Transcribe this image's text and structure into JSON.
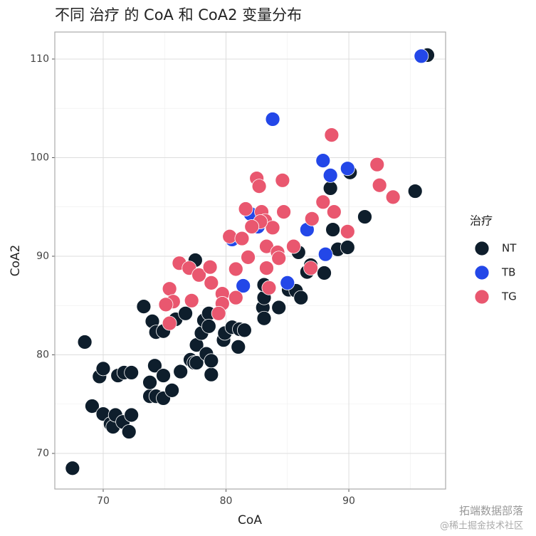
{
  "chart_data": {
    "type": "scatter",
    "title": "不同 治疗 的 CoA 和 CoA2 变量分布",
    "x_label": "CoA",
    "y_label": "CoA2",
    "legend_title": "治疗",
    "legend_position": "right",
    "grid": true,
    "xlim": [
      66.06,
      97.88
    ],
    "ylim": [
      66.39,
      112.74
    ],
    "xticks": [
      70,
      80,
      90
    ],
    "yticks": [
      70,
      80,
      90,
      100,
      110
    ],
    "x_minor_grid": [
      75,
      85,
      95
    ],
    "y_minor_grid": [
      75,
      85,
      95,
      105
    ],
    "series": [
      {
        "name": "NT",
        "color": "#0e1e2c",
        "x": [
          67.5,
          68.5,
          69.1,
          69.7,
          70.0,
          70.0,
          70.6,
          70.8,
          71.0,
          71.2,
          71.6,
          71.7,
          72.1,
          72.3,
          72.3,
          73.3,
          73.8,
          73.8,
          74.0,
          74.2,
          74.3,
          74.3,
          74.9,
          74.9,
          74.9,
          75.6,
          75.9,
          76.3,
          76.7,
          77.1,
          77.4,
          77.5,
          77.6,
          77.6,
          78.0,
          78.2,
          78.4,
          78.6,
          78.6,
          78.8,
          78.8,
          79.8,
          79.9,
          80.5,
          81.0,
          81.1,
          81.5,
          83.0,
          83.1,
          83.1,
          83.1,
          84.3,
          85.1,
          85.7,
          86.1,
          85.9,
          86.6,
          86.9,
          88.0,
          88.5,
          88.7,
          89.1,
          89.9,
          90.1,
          91.3,
          95.4,
          96.4
        ],
        "values": [
          68.5,
          81.3,
          74.8,
          77.8,
          78.6,
          74.0,
          73.0,
          72.7,
          73.9,
          77.9,
          73.2,
          78.2,
          72.2,
          78.2,
          73.9,
          84.9,
          75.8,
          77.2,
          83.4,
          78.9,
          82.3,
          75.8,
          82.4,
          77.9,
          75.6,
          76.4,
          83.6,
          78.3,
          84.2,
          79.5,
          79.2,
          89.6,
          81.0,
          79.2,
          82.2,
          83.5,
          80.1,
          84.2,
          82.9,
          78.0,
          79.4,
          81.5,
          82.2,
          82.8,
          80.8,
          82.6,
          82.5,
          84.8,
          83.7,
          85.8,
          87.1,
          84.8,
          86.6,
          86.5,
          85.8,
          90.4,
          88.4,
          89.1,
          88.3,
          96.9,
          92.7,
          90.7,
          90.9,
          98.5,
          94.0,
          96.6,
          110.4
        ]
      },
      {
        "name": "TB",
        "color": "#2347e8",
        "x": [
          95.9,
          83.8,
          87.9,
          89.9,
          88.5,
          86.6,
          88.1,
          85.0,
          81.4,
          82.0,
          82.6,
          80.5
        ],
        "values": [
          110.3,
          103.9,
          99.7,
          98.9,
          98.2,
          92.7,
          90.2,
          87.3,
          87.0,
          94.3,
          93.0,
          91.7
        ]
      },
      {
        "name": "TG",
        "color": "#e9576f",
        "x": [
          88.6,
          92.3,
          92.5,
          93.6,
          84.6,
          82.5,
          82.7,
          87.9,
          88.8,
          87.0,
          84.7,
          81.6,
          82.9,
          83.2,
          83.8,
          82.8,
          82.1,
          80.3,
          81.3,
          83.3,
          84.2,
          85.5,
          89.9,
          81.8,
          80.8,
          84.3,
          83.3,
          83.5,
          86.9,
          76.2,
          77.0,
          77.8,
          78.7,
          78.8,
          79.7,
          80.8,
          79.7,
          75.4,
          75.7,
          75.1,
          77.2,
          75.4,
          79.4
        ],
        "values": [
          102.3,
          99.3,
          97.2,
          96.0,
          97.7,
          97.9,
          97.1,
          95.5,
          94.5,
          93.8,
          94.5,
          94.8,
          94.5,
          93.6,
          92.9,
          93.5,
          93.0,
          92.0,
          91.8,
          91.0,
          90.4,
          91.0,
          92.5,
          89.9,
          88.7,
          89.8,
          88.8,
          86.8,
          88.8,
          89.3,
          88.8,
          88.1,
          88.9,
          87.3,
          86.2,
          85.8,
          85.2,
          86.7,
          85.4,
          85.1,
          85.5,
          83.2,
          84.2
        ]
      }
    ]
  },
  "watermark": {
    "line1": "拓端数据部落",
    "line2": "@稀土掘金技术社区"
  }
}
